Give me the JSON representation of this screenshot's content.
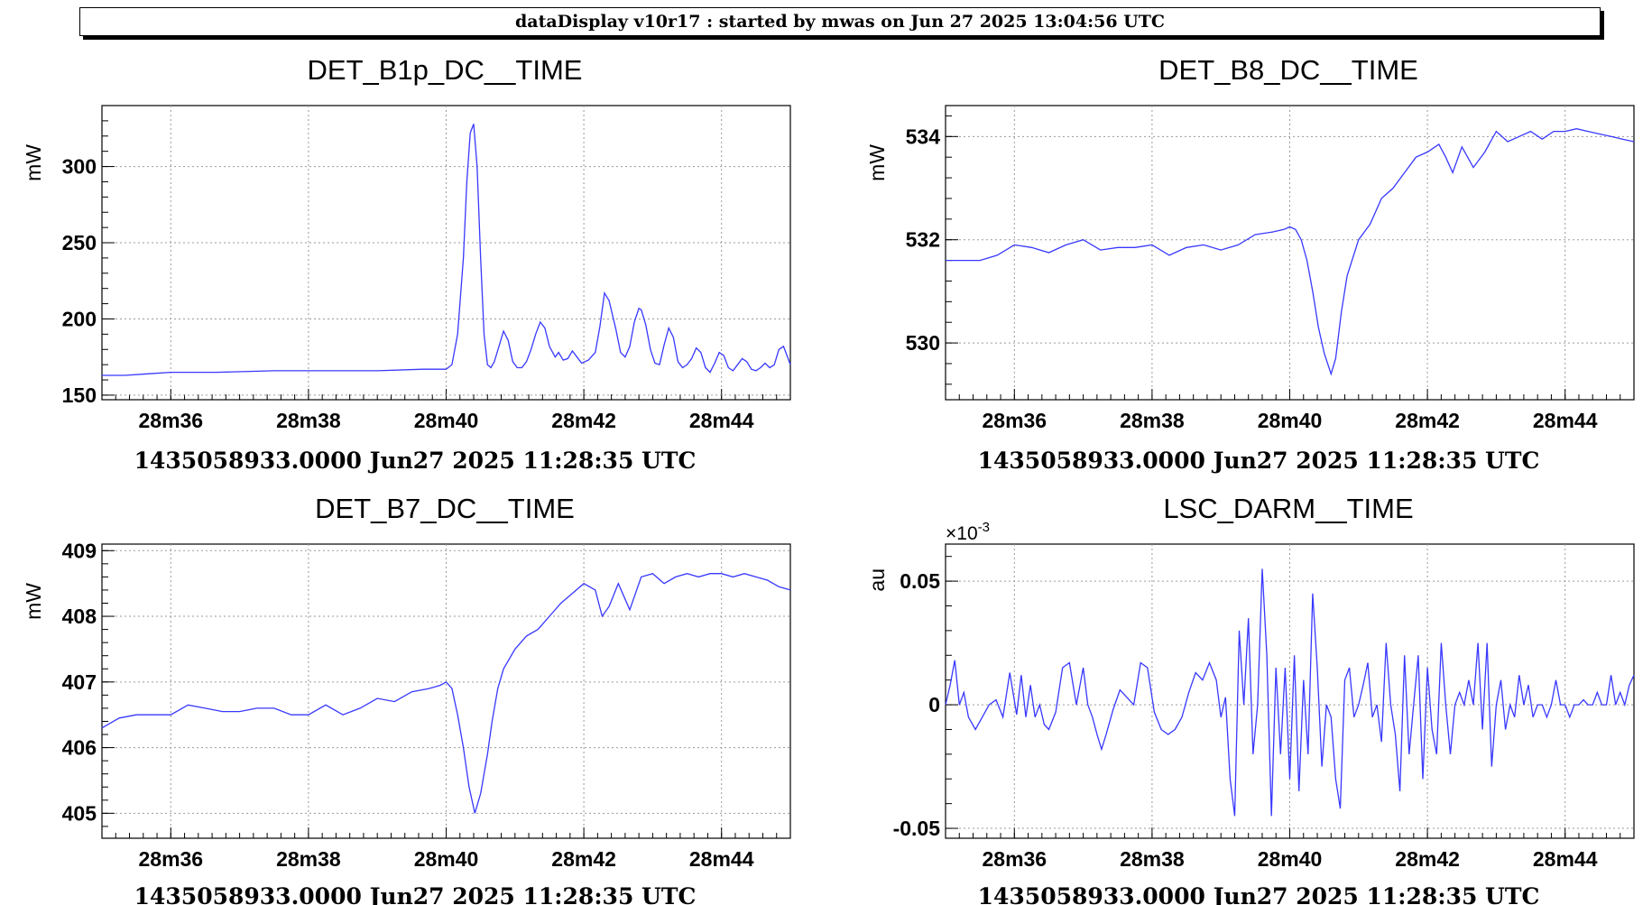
{
  "header": {
    "title": "dataDisplay v10r17 : started by mwas on Jun 27 2025 13:04:56 UTC"
  },
  "chart_data": [
    {
      "type": "line",
      "title": "DET_B1p_DC__TIME",
      "ylabel": "mW",
      "xlabel": "1435058933.0000 Jun27 2025 11:28:35 UTC",
      "x_unit": "s",
      "xlim": [
        0,
        600
      ],
      "ylim": [
        147,
        340
      ],
      "x_tick_values": [
        60,
        180,
        300,
        420,
        540
      ],
      "x_tick_labels": [
        "28m36",
        "28m38",
        "28m40",
        "28m42",
        "28m44"
      ],
      "y_tick_values": [
        150,
        200,
        250,
        300
      ],
      "y_tick_labels": [
        "150",
        "200",
        "250",
        "300"
      ],
      "y_exponent_label": "",
      "grid": true,
      "color": "#3838ff",
      "series": [
        {
          "x": [
            0,
            20,
            40,
            60,
            100,
            150,
            200,
            240,
            280,
            300,
            305,
            310,
            315,
            318,
            321,
            324,
            327,
            330,
            333,
            336,
            339,
            342,
            346,
            350,
            354,
            358,
            362,
            366,
            370,
            374,
            378,
            382,
            386,
            390,
            395,
            398,
            402,
            406,
            410,
            414,
            418,
            424,
            430,
            434,
            438,
            442,
            448,
            452,
            456,
            460,
            464,
            468,
            470,
            474,
            478,
            482,
            486,
            490,
            494,
            498,
            502,
            506,
            510,
            514,
            518,
            522,
            526,
            530,
            534,
            538,
            542,
            546,
            550,
            554,
            558,
            562,
            566,
            570,
            574,
            578,
            582,
            586,
            590,
            594,
            598,
            600
          ],
          "y": [
            163,
            163,
            164,
            165,
            165,
            166,
            166,
            166,
            167,
            167,
            170,
            190,
            240,
            290,
            322,
            328,
            300,
            240,
            190,
            170,
            168,
            172,
            182,
            192,
            186,
            172,
            168,
            168,
            172,
            180,
            190,
            198,
            194,
            182,
            175,
            178,
            173,
            174,
            179,
            175,
            171,
            173,
            178,
            195,
            217,
            212,
            193,
            178,
            175,
            182,
            198,
            207,
            206,
            196,
            180,
            171,
            170,
            183,
            194,
            188,
            172,
            168,
            170,
            174,
            181,
            178,
            168,
            165,
            171,
            178,
            176,
            168,
            166,
            170,
            174,
            172,
            167,
            166,
            168,
            171,
            168,
            170,
            180,
            182,
            174,
            170
          ]
        }
      ]
    },
    {
      "type": "line",
      "title": "DET_B8_DC__TIME",
      "ylabel": "mW",
      "xlabel": "1435058933.0000 Jun27 2025 11:28:35 UTC",
      "x_unit": "s",
      "xlim": [
        0,
        600
      ],
      "ylim": [
        528.9,
        534.6
      ],
      "x_tick_values": [
        60,
        180,
        300,
        420,
        540
      ],
      "x_tick_labels": [
        "28m36",
        "28m38",
        "28m40",
        "28m42",
        "28m44"
      ],
      "y_tick_values": [
        530,
        532,
        534
      ],
      "y_tick_labels": [
        "530",
        "532",
        "534"
      ],
      "y_exponent_label": "",
      "grid": true,
      "color": "#3838ff",
      "series": [
        {
          "x": [
            0,
            15,
            30,
            45,
            60,
            75,
            90,
            105,
            120,
            135,
            150,
            165,
            180,
            195,
            210,
            225,
            240,
            255,
            270,
            285,
            295,
            300,
            305,
            310,
            315,
            320,
            325,
            330,
            336,
            340,
            345,
            350,
            360,
            370,
            380,
            390,
            400,
            410,
            420,
            430,
            436,
            442,
            450,
            460,
            470,
            480,
            490,
            500,
            510,
            520,
            530,
            540,
            550,
            560,
            570,
            580,
            590,
            600
          ],
          "y": [
            531.6,
            531.6,
            531.6,
            531.7,
            531.9,
            531.85,
            531.75,
            531.9,
            532.0,
            531.8,
            531.85,
            531.85,
            531.9,
            531.7,
            531.85,
            531.9,
            531.8,
            531.9,
            532.1,
            532.15,
            532.2,
            532.25,
            532.2,
            532.0,
            531.6,
            531.0,
            530.3,
            529.8,
            529.4,
            529.7,
            530.6,
            531.3,
            532.0,
            532.3,
            532.8,
            533.0,
            533.3,
            533.6,
            533.7,
            533.85,
            533.6,
            533.3,
            533.8,
            533.4,
            533.7,
            534.1,
            533.9,
            534.0,
            534.1,
            533.95,
            534.1,
            534.1,
            534.15,
            534.1,
            534.05,
            534.0,
            533.95,
            533.9
          ]
        }
      ]
    },
    {
      "type": "line",
      "title": "DET_B7_DC__TIME",
      "ylabel": "mW",
      "xlabel": "1435058933.0000 Jun27 2025 11:28:35 UTC",
      "x_unit": "s",
      "xlim": [
        0,
        600
      ],
      "ylim": [
        404.62,
        409.1
      ],
      "x_tick_values": [
        60,
        180,
        300,
        420,
        540
      ],
      "x_tick_labels": [
        "28m36",
        "28m38",
        "28m40",
        "28m42",
        "28m44"
      ],
      "y_tick_values": [
        405,
        406,
        407,
        408,
        409
      ],
      "y_tick_labels": [
        "405",
        "406",
        "407",
        "408",
        "409"
      ],
      "y_exponent_label": "",
      "grid": true,
      "color": "#3838ff",
      "series": [
        {
          "x": [
            0,
            15,
            30,
            45,
            60,
            75,
            90,
            105,
            120,
            135,
            150,
            165,
            180,
            195,
            210,
            225,
            240,
            255,
            270,
            285,
            295,
            300,
            305,
            310,
            315,
            320,
            325,
            330,
            336,
            340,
            345,
            350,
            360,
            370,
            380,
            390,
            400,
            410,
            420,
            430,
            436,
            442,
            450,
            460,
            470,
            480,
            490,
            500,
            510,
            520,
            530,
            540,
            550,
            560,
            570,
            580,
            590,
            600
          ],
          "y": [
            406.3,
            406.45,
            406.5,
            406.5,
            406.5,
            406.65,
            406.6,
            406.55,
            406.55,
            406.6,
            406.6,
            406.5,
            406.5,
            406.65,
            406.5,
            406.6,
            406.75,
            406.7,
            406.85,
            406.9,
            406.95,
            407.0,
            406.9,
            406.5,
            406.0,
            405.4,
            405.0,
            405.3,
            405.9,
            406.4,
            406.9,
            407.2,
            407.5,
            407.7,
            407.8,
            408.0,
            408.2,
            408.35,
            408.5,
            408.4,
            408.0,
            408.15,
            408.5,
            408.1,
            408.6,
            408.65,
            408.5,
            408.6,
            408.65,
            408.6,
            408.65,
            408.65,
            408.6,
            408.65,
            408.6,
            408.55,
            408.45,
            408.4
          ]
        }
      ]
    },
    {
      "type": "line",
      "title": "LSC_DARM__TIME",
      "ylabel": "au",
      "xlabel": "1435058933.0000 Jun27 2025 11:28:35 UTC",
      "x_unit": "s",
      "xlim": [
        0,
        600
      ],
      "ylim": [
        -0.054,
        0.065
      ],
      "x_tick_values": [
        60,
        180,
        300,
        420,
        540
      ],
      "x_tick_labels": [
        "28m36",
        "28m38",
        "28m40",
        "28m42",
        "28m44"
      ],
      "y_tick_values": [
        -0.05,
        0,
        0.05
      ],
      "y_tick_labels": [
        "-0.05",
        "0",
        "0.05"
      ],
      "y_exponent_label": "×10^-3",
      "grid": true,
      "color": "#3838ff",
      "series": [
        {
          "x": [
            0,
            4,
            8,
            12,
            16,
            20,
            26,
            32,
            38,
            44,
            50,
            56,
            62,
            66,
            70,
            74,
            78,
            82,
            86,
            90,
            96,
            102,
            108,
            114,
            120,
            124,
            128,
            132,
            136,
            140,
            146,
            152,
            158,
            164,
            170,
            176,
            182,
            188,
            194,
            200,
            206,
            212,
            218,
            224,
            230,
            236,
            240,
            244,
            248,
            252,
            256,
            260,
            264,
            268,
            272,
            276,
            280,
            284,
            288,
            292,
            296,
            300,
            304,
            308,
            312,
            316,
            320,
            324,
            328,
            332,
            336,
            340,
            344,
            348,
            352,
            356,
            360,
            364,
            368,
            372,
            376,
            380,
            384,
            388,
            392,
            396,
            400,
            404,
            408,
            412,
            416,
            420,
            424,
            428,
            432,
            436,
            440,
            444,
            448,
            452,
            456,
            460,
            464,
            468,
            472,
            476,
            480,
            484,
            488,
            492,
            496,
            500,
            504,
            508,
            512,
            516,
            520,
            524,
            528,
            532,
            536,
            540,
            544,
            548,
            552,
            556,
            560,
            564,
            568,
            572,
            576,
            580,
            584,
            588,
            592,
            596,
            600
          ],
          "y": [
            0.0,
            0.008,
            0.018,
            0.0,
            0.005,
            -0.005,
            -0.01,
            -0.005,
            0.0,
            0.002,
            -0.005,
            0.013,
            -0.004,
            0.012,
            -0.005,
            0.008,
            -0.005,
            0.0,
            -0.008,
            -0.01,
            -0.003,
            0.015,
            0.017,
            0.0,
            0.015,
            0.0,
            -0.005,
            -0.012,
            -0.018,
            -0.012,
            -0.002,
            0.006,
            0.003,
            0.0,
            0.017,
            0.015,
            -0.003,
            -0.01,
            -0.012,
            -0.01,
            -0.005,
            0.005,
            0.013,
            0.01,
            0.017,
            0.01,
            -0.005,
            0.003,
            -0.03,
            -0.045,
            0.03,
            0.0,
            0.035,
            -0.02,
            0.0,
            0.055,
            0.02,
            -0.045,
            0.015,
            -0.02,
            0.015,
            -0.03,
            0.02,
            -0.035,
            0.01,
            -0.02,
            0.045,
            0.015,
            -0.025,
            0.0,
            -0.005,
            -0.03,
            -0.042,
            0.01,
            0.015,
            -0.005,
            0.0,
            0.008,
            0.017,
            -0.005,
            0.0,
            -0.015,
            0.025,
            0.0,
            -0.012,
            -0.035,
            0.02,
            -0.02,
            0.0,
            0.02,
            -0.03,
            0.015,
            -0.01,
            -0.02,
            0.025,
            0.0,
            -0.02,
            0.0,
            0.005,
            0.0,
            0.01,
            0.0,
            0.025,
            -0.01,
            0.025,
            -0.025,
            0.0,
            0.01,
            -0.01,
            0.0,
            -0.005,
            0.012,
            0.0,
            0.008,
            -0.005,
            0.0,
            0.0,
            -0.005,
            0.0,
            0.01,
            0.0,
            0.0,
            -0.005,
            0.0,
            0.0,
            0.002,
            0.0,
            0.0,
            0.005,
            0.0,
            0.0,
            0.012,
            0.0,
            0.005,
            0.0,
            0.008,
            0.012
          ]
        }
      ]
    }
  ]
}
